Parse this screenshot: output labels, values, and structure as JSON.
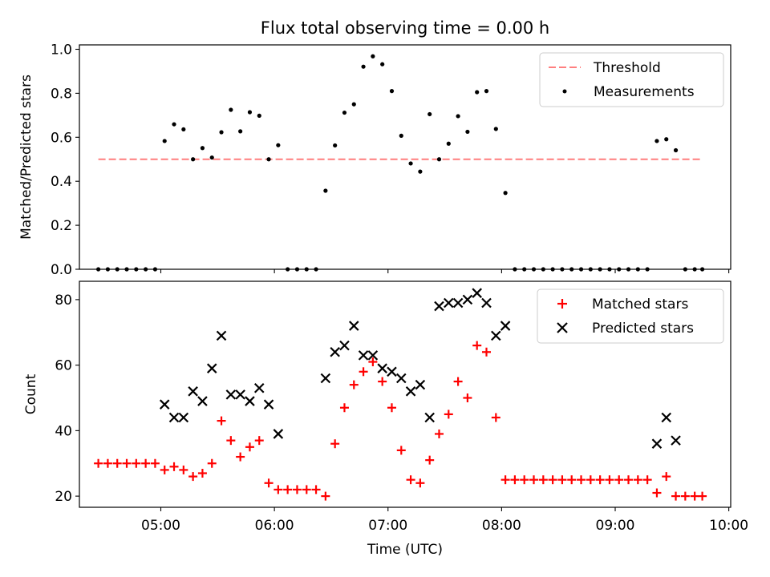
{
  "chart_data": [
    {
      "type": "scatter",
      "title": "Flux total observing time = 0.00 h",
      "xlabel": "",
      "ylabel": "Matched/Predicted stars",
      "xlim": [
        "04:17",
        "10:01"
      ],
      "ylim": [
        0,
        1.02
      ],
      "yticks": [
        "0.0",
        "0.2",
        "0.4",
        "0.6",
        "0.8",
        "1.0"
      ],
      "xticks": [
        "05:00",
        "06:00",
        "07:00",
        "08:00",
        "09:00",
        "10:00"
      ],
      "grid": false,
      "legend_position": "top-right",
      "threshold": {
        "name": "Threshold",
        "value": 0.5,
        "x_start": "04:27",
        "x_end": "09:46",
        "color": "#ff7f7f",
        "style": "dashed"
      },
      "series": [
        {
          "name": "Measurements",
          "marker": "dot",
          "color": "#000000",
          "points": [
            [
              "04:27",
              0.0
            ],
            [
              "04:32",
              0.0
            ],
            [
              "04:37",
              0.0
            ],
            [
              "04:42",
              0.0
            ],
            [
              "04:47",
              0.0
            ],
            [
              "04:52",
              0.0
            ],
            [
              "04:57",
              0.0
            ],
            [
              "05:02",
              0.583
            ],
            [
              "05:07",
              0.659
            ],
            [
              "05:12",
              0.636
            ],
            [
              "05:17",
              0.5
            ],
            [
              "05:22",
              0.551
            ],
            [
              "05:27",
              0.508
            ],
            [
              "05:32",
              0.623
            ],
            [
              "05:37",
              0.725
            ],
            [
              "05:42",
              0.627
            ],
            [
              "05:47",
              0.714
            ],
            [
              "05:52",
              0.698
            ],
            [
              "05:57",
              0.5
            ],
            [
              "06:02",
              0.564
            ],
            [
              "06:07",
              0.0
            ],
            [
              "06:12",
              0.0
            ],
            [
              "06:17",
              0.0
            ],
            [
              "06:22",
              0.0
            ],
            [
              "06:27",
              0.357
            ],
            [
              "06:32",
              0.563
            ],
            [
              "06:37",
              0.712
            ],
            [
              "06:42",
              0.75
            ],
            [
              "06:47",
              0.921
            ],
            [
              "06:52",
              0.968
            ],
            [
              "06:57",
              0.932
            ],
            [
              "07:02",
              0.81
            ],
            [
              "07:07",
              0.607
            ],
            [
              "07:12",
              0.481
            ],
            [
              "07:17",
              0.444
            ],
            [
              "07:22",
              0.705
            ],
            [
              "07:27",
              0.5
            ],
            [
              "07:32",
              0.571
            ],
            [
              "07:37",
              0.696
            ],
            [
              "07:42",
              0.625
            ],
            [
              "07:47",
              0.805
            ],
            [
              "07:52",
              0.81
            ],
            [
              "07:57",
              0.638
            ],
            [
              "08:02",
              0.347
            ],
            [
              "08:07",
              0.0
            ],
            [
              "08:12",
              0.0
            ],
            [
              "08:17",
              0.0
            ],
            [
              "08:22",
              0.0
            ],
            [
              "08:27",
              0.0
            ],
            [
              "08:32",
              0.0
            ],
            [
              "08:37",
              0.0
            ],
            [
              "08:42",
              0.0
            ],
            [
              "08:47",
              0.0
            ],
            [
              "08:52",
              0.0
            ],
            [
              "08:57",
              0.0
            ],
            [
              "09:02",
              0.0
            ],
            [
              "09:07",
              0.0
            ],
            [
              "09:12",
              0.0
            ],
            [
              "09:17",
              0.0
            ],
            [
              "09:22",
              0.583
            ],
            [
              "09:27",
              0.591
            ],
            [
              "09:32",
              0.541
            ],
            [
              "09:37",
              0.0
            ],
            [
              "09:42",
              0.0
            ],
            [
              "09:46",
              0.0
            ]
          ]
        }
      ]
    },
    {
      "type": "scatter",
      "title": "",
      "xlabel": "Time (UTC)",
      "ylabel": "Count",
      "xlim": [
        "04:17",
        "10:01"
      ],
      "ylim": [
        16.6,
        85.6
      ],
      "yticks": [
        "20",
        "40",
        "60",
        "80"
      ],
      "xticks": [
        "05:00",
        "06:00",
        "07:00",
        "08:00",
        "09:00",
        "10:00"
      ],
      "grid": false,
      "legend_position": "top-right",
      "series": [
        {
          "name": "Matched stars",
          "marker": "plus",
          "color": "#ff0000",
          "points": [
            [
              "04:27",
              30
            ],
            [
              "04:32",
              30
            ],
            [
              "04:37",
              30
            ],
            [
              "04:42",
              30
            ],
            [
              "04:47",
              30
            ],
            [
              "04:52",
              30
            ],
            [
              "04:57",
              30
            ],
            [
              "05:02",
              28
            ],
            [
              "05:07",
              29
            ],
            [
              "05:12",
              28
            ],
            [
              "05:17",
              26
            ],
            [
              "05:22",
              27
            ],
            [
              "05:27",
              30
            ],
            [
              "05:32",
              43
            ],
            [
              "05:37",
              37
            ],
            [
              "05:42",
              32
            ],
            [
              "05:47",
              35
            ],
            [
              "05:52",
              37
            ],
            [
              "05:57",
              24
            ],
            [
              "06:02",
              22
            ],
            [
              "06:07",
              22
            ],
            [
              "06:12",
              22
            ],
            [
              "06:17",
              22
            ],
            [
              "06:22",
              22
            ],
            [
              "06:27",
              20
            ],
            [
              "06:32",
              36
            ],
            [
              "06:37",
              47
            ],
            [
              "06:42",
              54
            ],
            [
              "06:47",
              58
            ],
            [
              "06:52",
              61
            ],
            [
              "06:57",
              55
            ],
            [
              "07:02",
              47
            ],
            [
              "07:07",
              34
            ],
            [
              "07:12",
              25
            ],
            [
              "07:17",
              24
            ],
            [
              "07:22",
              31
            ],
            [
              "07:27",
              39
            ],
            [
              "07:32",
              45
            ],
            [
              "07:37",
              55
            ],
            [
              "07:42",
              50
            ],
            [
              "07:47",
              66
            ],
            [
              "07:52",
              64
            ],
            [
              "07:57",
              44
            ],
            [
              "08:02",
              25
            ],
            [
              "08:07",
              25
            ],
            [
              "08:12",
              25
            ],
            [
              "08:17",
              25
            ],
            [
              "08:22",
              25
            ],
            [
              "08:27",
              25
            ],
            [
              "08:32",
              25
            ],
            [
              "08:37",
              25
            ],
            [
              "08:42",
              25
            ],
            [
              "08:47",
              25
            ],
            [
              "08:52",
              25
            ],
            [
              "08:57",
              25
            ],
            [
              "09:02",
              25
            ],
            [
              "09:07",
              25
            ],
            [
              "09:12",
              25
            ],
            [
              "09:17",
              25
            ],
            [
              "09:22",
              21
            ],
            [
              "09:27",
              26
            ],
            [
              "09:32",
              20
            ],
            [
              "09:37",
              20
            ],
            [
              "09:42",
              20
            ],
            [
              "09:46",
              20
            ]
          ]
        },
        {
          "name": "Predicted stars",
          "marker": "x",
          "color": "#000000",
          "points": [
            [
              "05:02",
              48
            ],
            [
              "05:07",
              44
            ],
            [
              "05:12",
              44
            ],
            [
              "05:17",
              52
            ],
            [
              "05:22",
              49
            ],
            [
              "05:27",
              59
            ],
            [
              "05:32",
              69
            ],
            [
              "05:37",
              51
            ],
            [
              "05:42",
              51
            ],
            [
              "05:47",
              49
            ],
            [
              "05:52",
              53
            ],
            [
              "05:57",
              48
            ],
            [
              "06:02",
              39
            ],
            [
              "06:27",
              56
            ],
            [
              "06:32",
              64
            ],
            [
              "06:37",
              66
            ],
            [
              "06:42",
              72
            ],
            [
              "06:47",
              63
            ],
            [
              "06:52",
              63
            ],
            [
              "06:57",
              59
            ],
            [
              "07:02",
              58
            ],
            [
              "07:07",
              56
            ],
            [
              "07:12",
              52
            ],
            [
              "07:17",
              54
            ],
            [
              "07:22",
              44
            ],
            [
              "07:27",
              78
            ],
            [
              "07:32",
              79
            ],
            [
              "07:37",
              79
            ],
            [
              "07:42",
              80
            ],
            [
              "07:47",
              82
            ],
            [
              "07:52",
              79
            ],
            [
              "07:57",
              69
            ],
            [
              "08:02",
              72
            ],
            [
              "09:22",
              36
            ],
            [
              "09:27",
              44
            ],
            [
              "09:32",
              37
            ]
          ]
        }
      ]
    }
  ]
}
